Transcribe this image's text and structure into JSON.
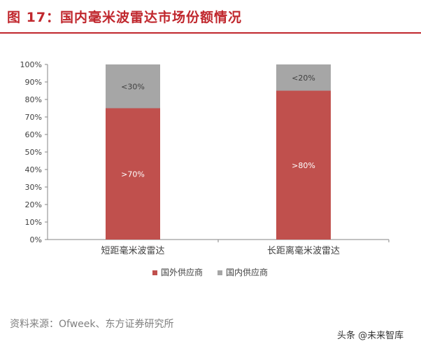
{
  "figure": {
    "title": "图 17：国内毫米波雷达市场份额情况",
    "source": "资料来源：Ofweek、东方证券研究所",
    "watermark": "头条 @未来智库"
  },
  "colors": {
    "accent": "#c0272d",
    "foreign": "#c0504d",
    "domestic": "#a6a6a6"
  },
  "chart_data": {
    "type": "bar",
    "stacked": true,
    "categories": [
      "短距毫米波雷达",
      "长距离毫米波雷达"
    ],
    "series": [
      {
        "name": "国外供应商",
        "values": [
          75,
          85
        ],
        "labels": [
          ">70%",
          ">80%"
        ],
        "color": "#c0504d"
      },
      {
        "name": "国内供应商",
        "values": [
          25,
          15
        ],
        "labels": [
          "<30%",
          "<20%"
        ],
        "color": "#a6a6a6"
      }
    ],
    "ylim": [
      0,
      100
    ],
    "yticks": [
      "0%",
      "10%",
      "20%",
      "30%",
      "40%",
      "50%",
      "60%",
      "70%",
      "80%",
      "90%",
      "100%"
    ],
    "grid": false,
    "legend_position": "bottom"
  }
}
